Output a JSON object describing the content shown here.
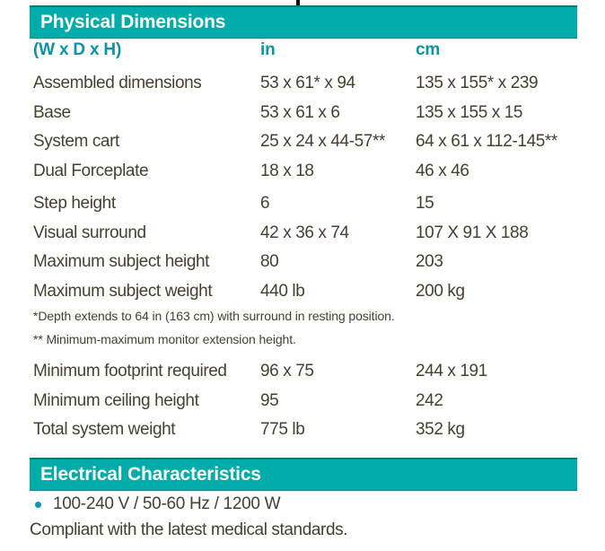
{
  "physical": {
    "title": "Physical Dimensions",
    "header": {
      "label": "(W x D x H)",
      "col_in": "in",
      "col_cm": "cm"
    },
    "rows": [
      {
        "label": "Assembled dimensions",
        "in": "53 x 61* x 94",
        "cm": "135 x 155* x 239"
      },
      {
        "label": "Base",
        "in": "53 x 61 x 6",
        "cm": "135 x 155 x 15"
      },
      {
        "label": "System cart",
        "in": "25 x 24 x 44-57**",
        "cm": "64 x 61 x 112-145**"
      },
      {
        "label": "Dual Forceplate",
        "in": "18 x 18",
        "cm": "46 x 46"
      },
      {
        "label": "Step height",
        "in": "6",
        "cm": "15"
      },
      {
        "label": "Visual surround",
        "in": "42 x 36 x 74",
        "cm": "107 X 91 X 188"
      },
      {
        "label": "Maximum subject height",
        "in": "80",
        "cm": "203"
      },
      {
        "label": "Maximum subject weight",
        "in": "440 lb",
        "cm": "200 kg"
      },
      {
        "label": "Minimum footprint required",
        "in": "96 x 75",
        "cm": "244 x 191"
      },
      {
        "label": "Minimum ceiling height",
        "in": "95",
        "cm": "242"
      },
      {
        "label": "Total system weight",
        "in": "775 lb",
        "cm": "352 kg"
      }
    ],
    "footnotes": [
      "*Depth extends to 64 in (163 cm) with surround in resting position.",
      "** Minimum-maximum monitor extension height."
    ]
  },
  "electrical": {
    "title": "Electrical Characteristics",
    "power_spec": "100-240 V / 50-60 Hz / 1200 W",
    "compliance_note": "Compliant with the latest medical standards."
  },
  "colors": {
    "header_bar_teal": "#00ACA9",
    "header_text_teal": "#0B93A6",
    "body_text": "#473F2F"
  }
}
